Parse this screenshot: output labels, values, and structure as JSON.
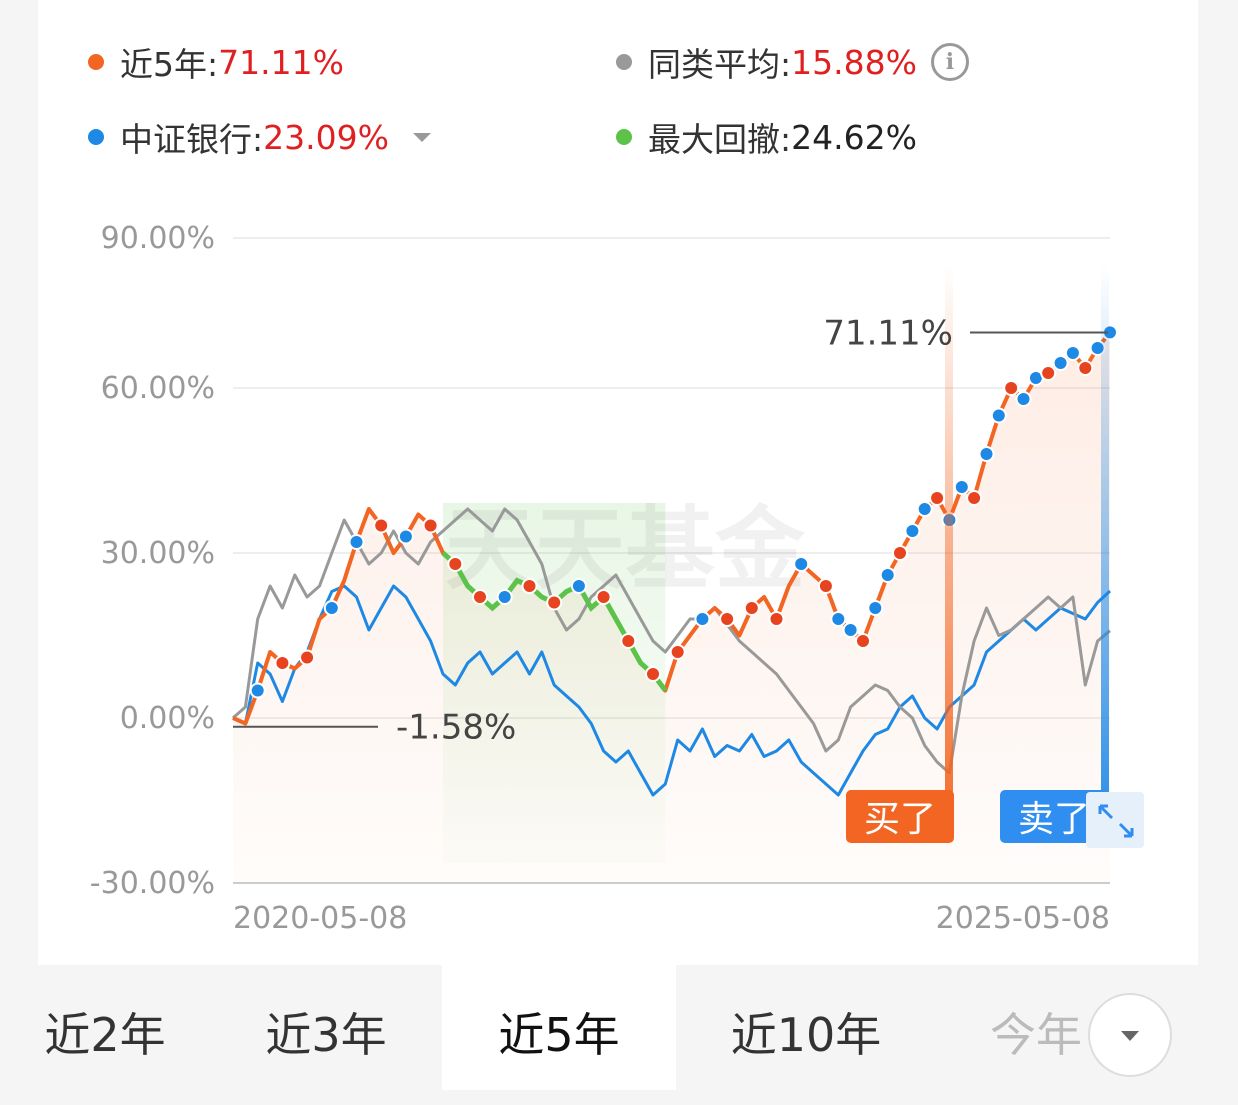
{
  "legend": {
    "fund": {
      "label": "近5年:",
      "value": "71.11%",
      "color": "#f26522"
    },
    "peer": {
      "label": "同类平均:",
      "value": "15.88%",
      "color": "#999999"
    },
    "index": {
      "label": "中证银行:",
      "value": "23.09%",
      "color": "#1e88e5"
    },
    "drawdown": {
      "label": "最大回撤:",
      "value": "24.62%",
      "color": "#5cc24a"
    },
    "info_icon": "info-icon",
    "index_dropdown_icon": "chevron-down-icon"
  },
  "chart_data": {
    "type": "line",
    "y_ticks": [
      "90.00%",
      "60.00%",
      "30.00%",
      "0.00%",
      "-30.00%"
    ],
    "ylim": [
      -30,
      90
    ],
    "x_labels": [
      "2020-05-08",
      "2025-05-08"
    ],
    "watermark": "天天基金",
    "series": [
      {
        "name": "近5年",
        "color": "#f26522",
        "values": [
          0,
          -1,
          5,
          12,
          10,
          9,
          11,
          18,
          20,
          25,
          32,
          38,
          35,
          30,
          33,
          37,
          35,
          30,
          28,
          24,
          22,
          20,
          22,
          25,
          24,
          22,
          21,
          23,
          24,
          20,
          22,
          18,
          14,
          10,
          8,
          5,
          12,
          15,
          18,
          20,
          18,
          15,
          20,
          22,
          18,
          24,
          28,
          26,
          24,
          18,
          16,
          14,
          20,
          26,
          30,
          34,
          38,
          40,
          36,
          42,
          40,
          48,
          55,
          60,
          58,
          62,
          63,
          65,
          67,
          64,
          68,
          71.11
        ]
      },
      {
        "name": "同类平均",
        "color": "#999999",
        "values": [
          0,
          2,
          18,
          24,
          20,
          26,
          22,
          24,
          30,
          36,
          32,
          28,
          30,
          34,
          30,
          28,
          32,
          34,
          36,
          38,
          36,
          34,
          38,
          36,
          32,
          28,
          20,
          16,
          18,
          22,
          24,
          26,
          22,
          18,
          14,
          12,
          15,
          18,
          18,
          20,
          17,
          14,
          12,
          10,
          8,
          5,
          2,
          -1,
          -6,
          -4,
          2,
          4,
          6,
          5,
          2,
          0,
          -5,
          -8,
          -10,
          4,
          14,
          20,
          15,
          16,
          18,
          20,
          22,
          20,
          22,
          6,
          14,
          15.88
        ]
      },
      {
        "name": "中证银行",
        "color": "#1e88e5",
        "values": [
          0,
          -1,
          10,
          8,
          3,
          9,
          12,
          18,
          23,
          24,
          22,
          16,
          20,
          24,
          22,
          18,
          14,
          8,
          6,
          10,
          12,
          8,
          10,
          12,
          8,
          12,
          6,
          4,
          2,
          -1,
          -6,
          -8,
          -6,
          -10,
          -14,
          -12,
          -4,
          -6,
          -2,
          -7,
          -5,
          -6,
          -3,
          -7,
          -6,
          -4,
          -8,
          -10,
          -12,
          -14,
          -10,
          -6,
          -3,
          -2,
          2,
          4,
          0,
          -2,
          2,
          4,
          6,
          12,
          14,
          16,
          18,
          16,
          18,
          20,
          19,
          18,
          21,
          23.09
        ]
      }
    ],
    "drawdown_range": {
      "start_index": 17,
      "end_index": 35,
      "value": "24.62%"
    },
    "annotations": {
      "max": "71.11%",
      "min": "-1.58%"
    },
    "markers": {
      "buy": "买了",
      "sell": "卖了"
    },
    "expand_icon": "expand-icon",
    "grid": true
  },
  "tabs": [
    {
      "label": "近2年",
      "active": false
    },
    {
      "label": "近3年",
      "active": false
    },
    {
      "label": "近5年",
      "active": true
    },
    {
      "label": "近10年",
      "active": false
    },
    {
      "label": "今年",
      "active": false
    }
  ],
  "tab_more_icon": "chevron-down-icon"
}
